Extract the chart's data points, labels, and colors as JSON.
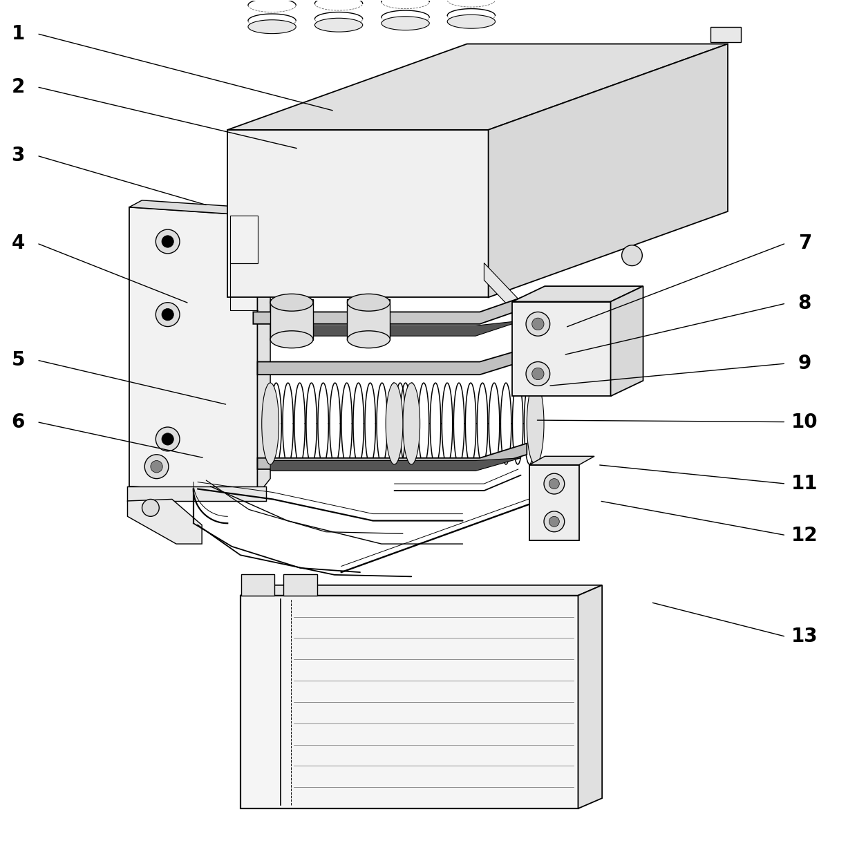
{
  "figure_width": 12.4,
  "figure_height": 12.46,
  "dpi": 100,
  "background_color": "#ffffff",
  "line_color": "#000000",
  "label_fontsize": 20,
  "label_fontweight": "bold",
  "labels": [
    {
      "num": "1",
      "xt": 0.02,
      "yt": 0.962,
      "xa": 0.39,
      "ya": 0.872
    },
    {
      "num": "2",
      "xt": 0.02,
      "yt": 0.9,
      "xa": 0.348,
      "ya": 0.828
    },
    {
      "num": "3",
      "xt": 0.02,
      "yt": 0.82,
      "xa": 0.242,
      "ya": 0.762
    },
    {
      "num": "4",
      "xt": 0.02,
      "yt": 0.718,
      "xa": 0.22,
      "ya": 0.648
    },
    {
      "num": "5",
      "xt": 0.02,
      "yt": 0.582,
      "xa": 0.265,
      "ya": 0.53
    },
    {
      "num": "6",
      "xt": 0.02,
      "yt": 0.51,
      "xa": 0.238,
      "ya": 0.468
    },
    {
      "num": "7",
      "xt": 0.94,
      "yt": 0.718,
      "xa": 0.66,
      "ya": 0.62
    },
    {
      "num": "8",
      "xt": 0.94,
      "yt": 0.648,
      "xa": 0.658,
      "ya": 0.588
    },
    {
      "num": "9",
      "xt": 0.94,
      "yt": 0.578,
      "xa": 0.64,
      "ya": 0.552
    },
    {
      "num": "10",
      "xt": 0.94,
      "yt": 0.51,
      "xa": 0.625,
      "ya": 0.512
    },
    {
      "num": "11",
      "xt": 0.94,
      "yt": 0.438,
      "xa": 0.698,
      "ya": 0.46
    },
    {
      "num": "12",
      "xt": 0.94,
      "yt": 0.378,
      "xa": 0.7,
      "ya": 0.418
    },
    {
      "num": "13",
      "xt": 0.94,
      "yt": 0.26,
      "xa": 0.76,
      "ya": 0.3
    }
  ],
  "annotation_color": "#000000",
  "annotation_linewidth": 1.0
}
